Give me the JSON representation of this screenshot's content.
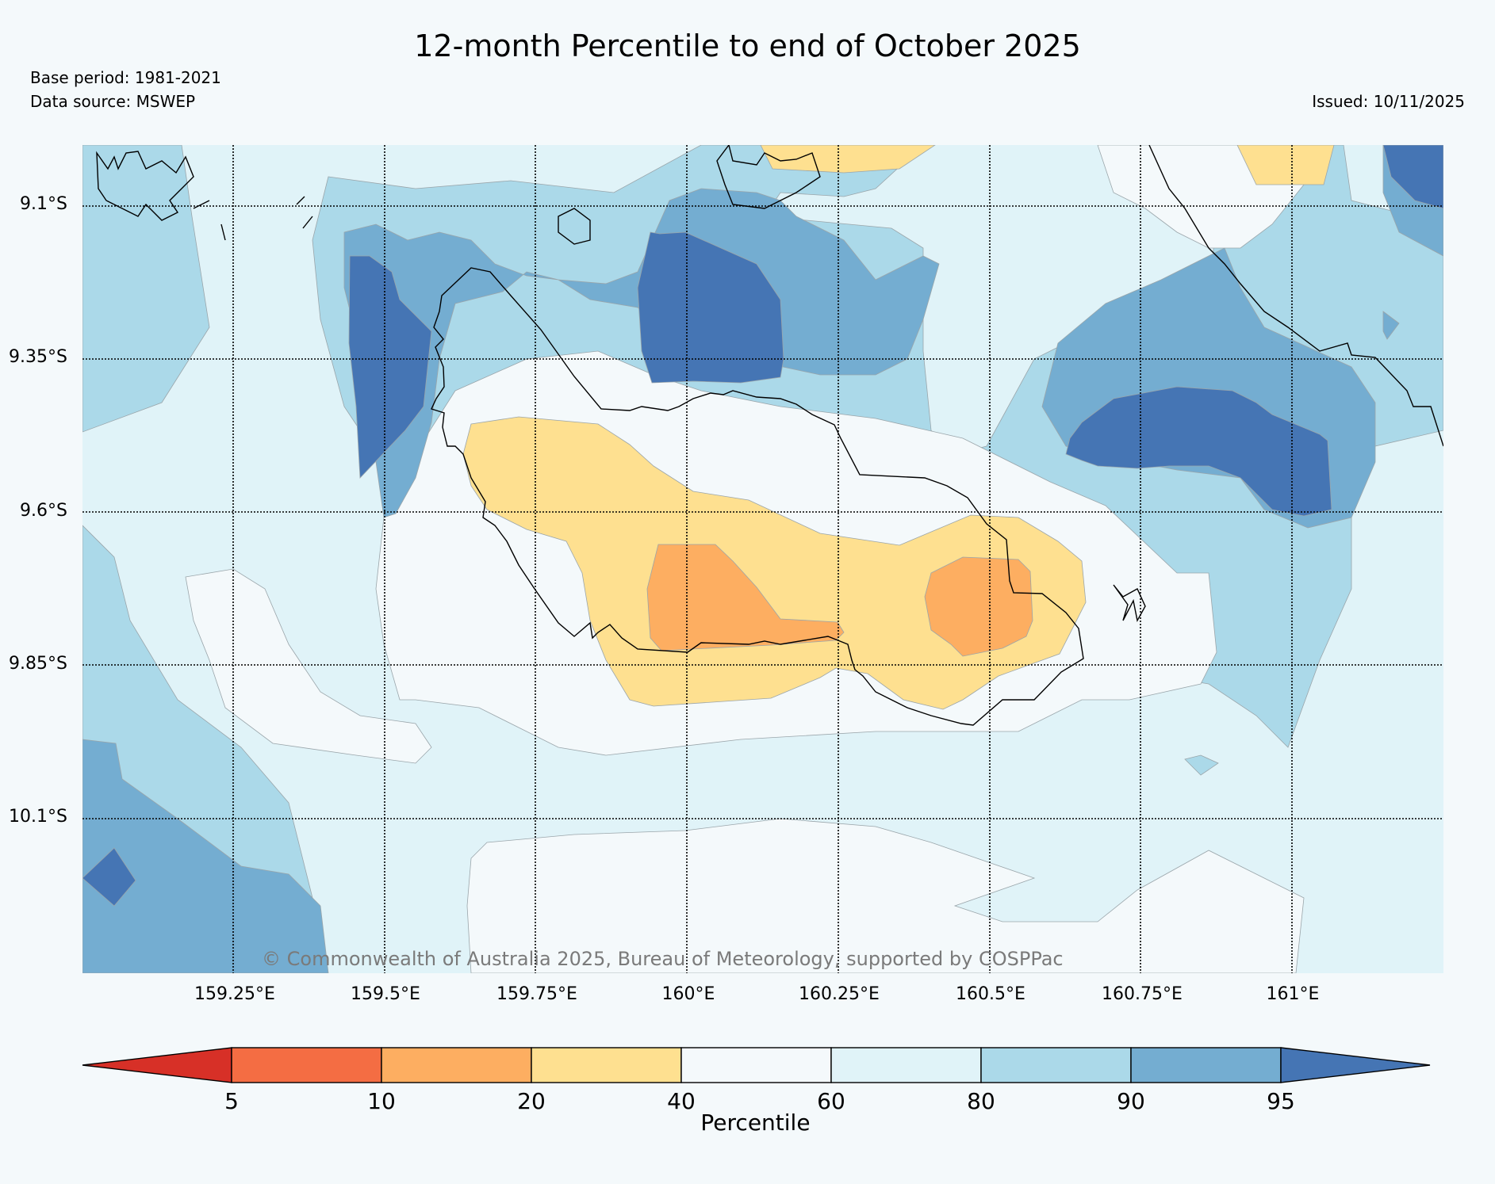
{
  "title": "12-month Percentile to end of October 2025",
  "base_period": "Base period: 1981-2021",
  "data_source": "Data source: MSWEP",
  "issued": "Issued: 10/11/2025",
  "latitude_labels": [
    "9.1°S",
    "9.35°S",
    "9.6°S",
    "9.85°S",
    "10.1°S"
  ],
  "longitude_labels": [
    "159.25°E",
    "159.5°E",
    "159.75°E",
    "160°E",
    "160.25°E",
    "160.5°E",
    "160.75°E",
    "161°E"
  ],
  "copyright": "© Commonwealth of Australia 2025, Bureau of Meteorology, supported by COSPPac",
  "colorbar": {
    "label": "Percentile",
    "ticks": [
      "5",
      "10",
      "20",
      "40",
      "60",
      "80",
      "90",
      "95"
    ],
    "colors": [
      "#d73027",
      "#f46d43",
      "#fdae61",
      "#fee090",
      "#f4f9fb",
      "#e0f3f8",
      "#abd9e9",
      "#74add1",
      "#4575b4"
    ]
  }
}
